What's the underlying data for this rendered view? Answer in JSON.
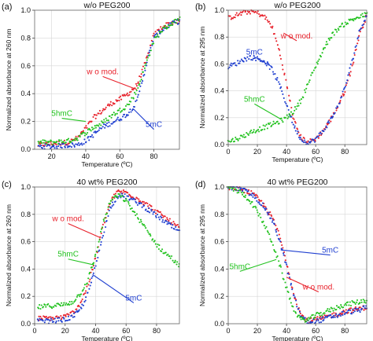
{
  "colors": {
    "wo_mod": "#e8202a",
    "5mC": "#1f3fd0",
    "5hmC": "#22c21f"
  },
  "chart_data": [
    {
      "panel": "(a)",
      "type": "scatter",
      "title": "w/o PEG200",
      "xlabel": "Temperature (ºC)",
      "ylabel": "Normalized absorbance at 260 nm",
      "xlim": [
        10,
        95
      ],
      "ylim": [
        0,
        1.0
      ],
      "xticks": [
        20,
        40,
        60,
        80
      ],
      "yticks": [
        0.0,
        0.2,
        0.4,
        0.6,
        0.8,
        1.0
      ],
      "grid": true,
      "series": [
        {
          "name": "w o mod.",
          "color": "#e8202a",
          "x": [
            12,
            20,
            30,
            35,
            40,
            45,
            50,
            55,
            60,
            65,
            70,
            75,
            80,
            85,
            90,
            95
          ],
          "y": [
            0.03,
            0.04,
            0.05,
            0.08,
            0.15,
            0.23,
            0.28,
            0.33,
            0.36,
            0.4,
            0.46,
            0.62,
            0.82,
            0.88,
            0.91,
            0.92
          ]
        },
        {
          "name": "5mC",
          "color": "#1f3fd0",
          "x": [
            12,
            20,
            30,
            35,
            40,
            45,
            50,
            55,
            60,
            65,
            70,
            72,
            75,
            78,
            80,
            85,
            90,
            95
          ],
          "y": [
            0.02,
            0.02,
            0.03,
            0.03,
            0.06,
            0.11,
            0.16,
            0.19,
            0.22,
            0.26,
            0.34,
            0.44,
            0.58,
            0.72,
            0.8,
            0.86,
            0.9,
            0.92
          ]
        },
        {
          "name": "5hmC",
          "color": "#22c21f",
          "x": [
            12,
            20,
            30,
            35,
            40,
            45,
            50,
            55,
            60,
            65,
            70,
            75,
            80,
            85,
            90,
            95
          ],
          "y": [
            0.05,
            0.05,
            0.06,
            0.08,
            0.12,
            0.16,
            0.19,
            0.24,
            0.28,
            0.32,
            0.42,
            0.6,
            0.78,
            0.86,
            0.9,
            0.94
          ]
        }
      ],
      "annotations": [
        {
          "text": "w o mod.",
          "series": "w o mod.",
          "at": [
            50,
            0.54
          ],
          "points_to": [
            70,
            0.43
          ]
        },
        {
          "text": "5hmC",
          "series": "5hmC",
          "at": [
            26,
            0.24
          ],
          "points_to": [
            40,
            0.2
          ]
        },
        {
          "text": "5mC",
          "series": "5mC",
          "at": [
            80,
            0.16
          ],
          "points_to": [
            68,
            0.29
          ]
        }
      ]
    },
    {
      "panel": "(b)",
      "type": "scatter",
      "title": "w/o PEG200",
      "xlabel": "Temperature (ºC)",
      "ylabel": "Normalized absorbance at 295 nm",
      "xlim": [
        0,
        95
      ],
      "ylim": [
        0,
        1.0
      ],
      "xticks": [
        0,
        20,
        40,
        60,
        80
      ],
      "yticks": [
        0.0,
        0.2,
        0.4,
        0.6,
        0.8,
        1.0
      ],
      "grid": true,
      "series": [
        {
          "name": "w o mod.",
          "color": "#e8202a",
          "x": [
            0,
            5,
            10,
            15,
            20,
            25,
            30,
            35,
            40,
            45,
            50,
            55,
            60,
            65,
            70,
            75,
            80,
            85,
            90,
            95
          ],
          "y": [
            0.94,
            0.96,
            0.98,
            0.99,
            0.98,
            0.95,
            0.88,
            0.7,
            0.45,
            0.18,
            0.05,
            0.02,
            0.04,
            0.1,
            0.18,
            0.28,
            0.4,
            0.58,
            0.82,
            0.96
          ]
        },
        {
          "name": "5mC",
          "color": "#1f3fd0",
          "x": [
            0,
            5,
            10,
            15,
            20,
            25,
            30,
            35,
            40,
            45,
            50,
            55,
            60,
            65,
            70,
            75,
            80,
            85,
            90,
            95
          ],
          "y": [
            0.58,
            0.6,
            0.63,
            0.65,
            0.64,
            0.62,
            0.56,
            0.45,
            0.3,
            0.14,
            0.04,
            0.01,
            0.04,
            0.1,
            0.18,
            0.28,
            0.42,
            0.62,
            0.84,
            0.97
          ]
        },
        {
          "name": "5hmC",
          "color": "#22c21f",
          "x": [
            0,
            5,
            10,
            15,
            20,
            25,
            30,
            35,
            40,
            45,
            50,
            55,
            60,
            65,
            70,
            75,
            80,
            85,
            90,
            95
          ],
          "y": [
            0.02,
            0.04,
            0.06,
            0.09,
            0.11,
            0.13,
            0.15,
            0.17,
            0.2,
            0.25,
            0.33,
            0.46,
            0.58,
            0.7,
            0.8,
            0.86,
            0.9,
            0.93,
            0.95,
            0.97
          ]
        }
      ],
      "annotations": [
        {
          "text": "w o mod.",
          "series": "w o mod.",
          "at": [
            47,
            0.79
          ],
          "points_to": [
            38,
            0.83
          ]
        },
        {
          "text": "5mC",
          "series": "5mC",
          "at": [
            18,
            0.67
          ],
          "points_to": [
            30,
            0.58
          ]
        },
        {
          "text": "5hmC",
          "series": "5hmC",
          "at": [
            18,
            0.32
          ],
          "points_to": [
            36,
            0.19
          ]
        }
      ]
    },
    {
      "panel": "(c)",
      "type": "scatter",
      "title": "40 wt% PEG200",
      "xlabel": "Temperature (ºC)",
      "ylabel": "Normalized absorbance at 260 nm",
      "xlim": [
        0,
        95
      ],
      "ylim": [
        0,
        1.0
      ],
      "xticks": [
        0,
        20,
        40,
        60,
        80
      ],
      "yticks": [
        0.0,
        0.2,
        0.4,
        0.6,
        0.8,
        1.0
      ],
      "grid": true,
      "series": [
        {
          "name": "w o mod.",
          "color": "#e8202a",
          "x": [
            2,
            10,
            20,
            25,
            30,
            35,
            40,
            45,
            50,
            55,
            60,
            65,
            70,
            75,
            80,
            85,
            90,
            95
          ],
          "y": [
            0.04,
            0.04,
            0.05,
            0.08,
            0.15,
            0.28,
            0.48,
            0.72,
            0.9,
            0.97,
            0.96,
            0.93,
            0.9,
            0.86,
            0.82,
            0.78,
            0.74,
            0.7
          ]
        },
        {
          "name": "5mC",
          "color": "#1f3fd0",
          "x": [
            2,
            10,
            20,
            25,
            30,
            35,
            40,
            45,
            50,
            55,
            60,
            65,
            70,
            75,
            80,
            85,
            90,
            95
          ],
          "y": [
            0.02,
            0.02,
            0.03,
            0.05,
            0.1,
            0.22,
            0.42,
            0.66,
            0.86,
            0.94,
            0.93,
            0.9,
            0.87,
            0.83,
            0.79,
            0.75,
            0.71,
            0.67
          ]
        },
        {
          "name": "5hmC",
          "color": "#22c21f",
          "x": [
            2,
            10,
            20,
            25,
            30,
            35,
            40,
            45,
            50,
            55,
            60,
            65,
            70,
            75,
            80,
            85,
            90,
            95
          ],
          "y": [
            0.12,
            0.13,
            0.14,
            0.16,
            0.22,
            0.32,
            0.5,
            0.74,
            0.9,
            0.94,
            0.9,
            0.82,
            0.74,
            0.66,
            0.58,
            0.52,
            0.48,
            0.42
          ]
        }
      ],
      "annotations": [
        {
          "text": "w o mod.",
          "series": "w o mod.",
          "at": [
            22,
            0.75
          ],
          "points_to": [
            43,
            0.63
          ]
        },
        {
          "text": "5hmC",
          "series": "5hmC",
          "at": [
            22,
            0.49
          ],
          "points_to": [
            39,
            0.43
          ]
        },
        {
          "text": "5mC",
          "series": "5mC",
          "at": [
            65,
            0.17
          ],
          "points_to": [
            38,
            0.36
          ]
        }
      ]
    },
    {
      "panel": "(d)",
      "type": "scatter",
      "title": "40 wt% PEG200",
      "xlabel": "Temperature (ºC)",
      "ylabel": "Normalized absorbance at 295 nm",
      "xlim": [
        0,
        95
      ],
      "ylim": [
        0,
        1.0
      ],
      "xticks": [
        0,
        20,
        40,
        60,
        80
      ],
      "yticks": [
        0.0,
        0.2,
        0.4,
        0.6,
        0.8,
        1.0
      ],
      "grid": true,
      "series": [
        {
          "name": "w o mod.",
          "color": "#e8202a",
          "x": [
            0,
            5,
            10,
            15,
            20,
            25,
            30,
            35,
            40,
            45,
            50,
            55,
            60,
            65,
            70,
            75,
            80,
            85,
            90,
            95
          ],
          "y": [
            1.0,
            0.99,
            0.98,
            0.96,
            0.92,
            0.86,
            0.78,
            0.65,
            0.45,
            0.22,
            0.06,
            0.02,
            0.03,
            0.04,
            0.06,
            0.07,
            0.09,
            0.1,
            0.11,
            0.12
          ]
        },
        {
          "name": "5mC",
          "color": "#1f3fd0",
          "x": [
            0,
            5,
            10,
            15,
            20,
            25,
            30,
            35,
            40,
            45,
            50,
            55,
            60,
            65,
            70,
            75,
            80,
            85,
            90,
            95
          ],
          "y": [
            1.0,
            0.99,
            0.98,
            0.95,
            0.91,
            0.85,
            0.76,
            0.62,
            0.42,
            0.2,
            0.05,
            0.01,
            0.02,
            0.03,
            0.05,
            0.06,
            0.08,
            0.09,
            0.1,
            0.12
          ]
        },
        {
          "name": "5hmC",
          "color": "#22c21f",
          "x": [
            0,
            5,
            10,
            15,
            20,
            25,
            30,
            35,
            40,
            45,
            50,
            55,
            60,
            65,
            70,
            75,
            80,
            85,
            90,
            95
          ],
          "y": [
            1.0,
            0.98,
            0.95,
            0.9,
            0.82,
            0.72,
            0.6,
            0.44,
            0.26,
            0.1,
            0.03,
            0.03,
            0.06,
            0.08,
            0.1,
            0.12,
            0.14,
            0.15,
            0.16,
            0.17
          ]
        }
      ],
      "annotations": [
        {
          "text": "5mC",
          "series": "5mC",
          "at": [
            70,
            0.52
          ],
          "points_to": [
            36,
            0.54
          ]
        },
        {
          "text": "5hmC",
          "series": "5hmC",
          "at": [
            8,
            0.4
          ],
          "points_to": [
            33,
            0.47
          ]
        },
        {
          "text": "w o mod.",
          "series": "w o mod.",
          "at": [
            62,
            0.25
          ],
          "points_to": [
            40,
            0.34
          ]
        }
      ]
    }
  ]
}
